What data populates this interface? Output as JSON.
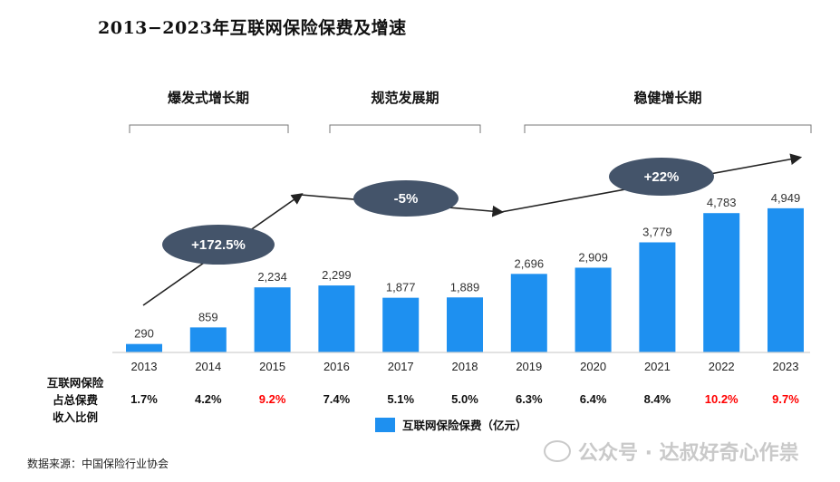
{
  "page": {
    "title": "2013−2023年互联网保险保费及增速",
    "source": "数据来源：中国保险行业协会"
  },
  "phases": [
    {
      "label": "爆发式增长期",
      "change": "+172.5%"
    },
    {
      "label": "规范发展期",
      "change": "-5%"
    },
    {
      "label": "稳健增长期",
      "change": "+22%"
    }
  ],
  "share_row": {
    "label": [
      "互联网保险",
      "占总保费",
      "收入比例"
    ],
    "values": [
      "1.7%",
      "4.2%",
      "9.2%",
      "7.4%",
      "5.1%",
      "5.0%",
      "6.3%",
      "6.4%",
      "8.4%",
      "10.2%",
      "9.7%"
    ],
    "highlight": [
      false,
      false,
      true,
      false,
      false,
      false,
      false,
      false,
      false,
      true,
      true
    ]
  },
  "legend": {
    "label": "互联网保险保费（亿元）"
  },
  "watermark": {
    "text": "公众号 · 达叔好奇心作祟"
  },
  "colors": {
    "bar": "#1e90f0",
    "ellipse": "#44546a",
    "highlight": "#ff0000",
    "text": "#111111"
  },
  "chart_data": {
    "type": "bar",
    "categories": [
      "2013",
      "2014",
      "2015",
      "2016",
      "2017",
      "2018",
      "2019",
      "2020",
      "2021",
      "2022",
      "2023"
    ],
    "series": [
      {
        "name": "互联网保险保费（亿元）",
        "values": [
          290,
          859,
          2234,
          2299,
          1877,
          1889,
          2696,
          2909,
          3779,
          4783,
          4949
        ]
      }
    ],
    "data_labels": [
      "290",
      "859",
      "2,234",
      "2,299",
      "1,877",
      "1,889",
      "2,696",
      "2,909",
      "3,779",
      "4,783",
      "4,949"
    ],
    "ylim": [
      0,
      6500
    ],
    "title": "2013−2023年互联网保险保费及增速",
    "xlabel": "",
    "ylabel": "",
    "legend_position": "bottom",
    "grid": false
  }
}
